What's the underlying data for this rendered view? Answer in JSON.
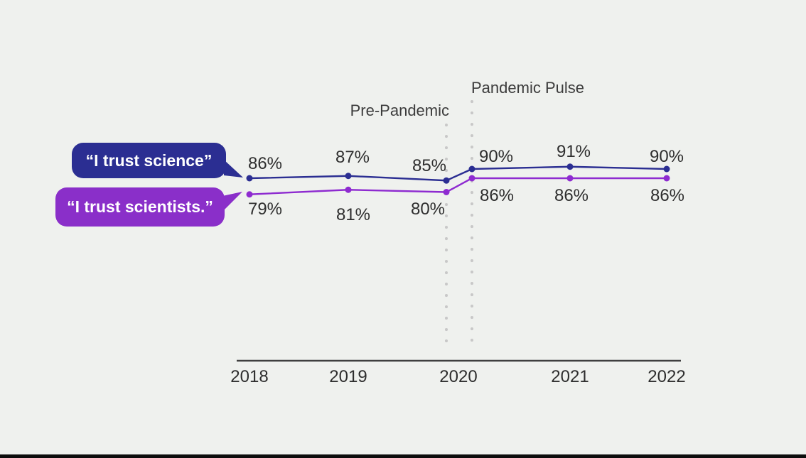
{
  "colors": {
    "background": "#eff1ee",
    "science_blue": "#2b2e92",
    "scientists_purple_bubble": "#8a2fc9",
    "scientists_purple_line": "#8e2bd0",
    "axis": "#3f3f3f",
    "guide_dots": "#c8c8c8",
    "label_text": "#2e2e2e",
    "bottom_bar": "#0d0d0d"
  },
  "legend": {
    "science_bubble": "“I trust science”",
    "scientists_bubble": "“I trust scientists.”"
  },
  "chart_data": {
    "type": "line",
    "title": "",
    "xlabel": "",
    "ylabel": "",
    "x_categories": [
      "2018",
      "2019",
      "2020",
      "2021",
      "2022"
    ],
    "x_points": [
      "2018",
      "2019",
      "2020 (Pre-Pandemic)",
      "2020 (Pandemic Pulse)",
      "2021",
      "2022"
    ],
    "annotations": {
      "pre_pandemic": "Pre-Pandemic",
      "pandemic_pulse": "Pandemic Pulse"
    },
    "series": [
      {
        "name": "“I trust science”",
        "color": "#2b2e92",
        "values": [
          86,
          87,
          85,
          90,
          91,
          90
        ],
        "labels": [
          "86%",
          "87%",
          "85%",
          "90%",
          "91%",
          "90%"
        ]
      },
      {
        "name": "“I trust scientists.”",
        "color": "#8e2bd0",
        "values": [
          79,
          81,
          80,
          86,
          86,
          86
        ],
        "labels": [
          "79%",
          "81%",
          "80%",
          "86%",
          "86%",
          "86%"
        ]
      }
    ],
    "ylim": [
      70,
      100
    ],
    "grid": false,
    "legend_position": "left-callouts"
  }
}
